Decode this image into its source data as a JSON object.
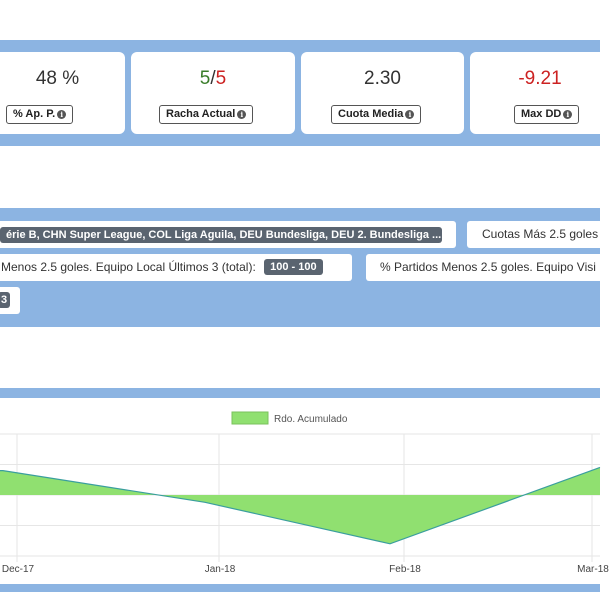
{
  "stats": [
    {
      "value": "48 %",
      "label": "% Ap. P."
    },
    {
      "value_a": "5",
      "sep": "/",
      "value_b": "5",
      "label": "Racha Actual"
    },
    {
      "value": "2.30",
      "label": "Cuota Media"
    },
    {
      "value": "-9.21",
      "label": "Max DD"
    }
  ],
  "colors": {
    "band": "#8cb4e2",
    "positive": "#3a7d2a",
    "negative": "#cc2222",
    "fill": "#90e070",
    "line": "#3a9e9e"
  },
  "filters": {
    "leagues_tag": "érie B, CHN Super League, COL Liga Aguila, DEU Bundesliga, DEU 2. Bundesliga ...",
    "cuotas_label": "Cuotas Más 2.5 goles",
    "local_label": "Menos 2.5 goles. Equipo Local Últimos 3 (total):",
    "local_tag": "100 - 100",
    "visit_label": "% Partidos Menos 2.5 goles. Equipo Visi",
    "small_tag": "3"
  },
  "chart_data": {
    "type": "area",
    "legend": [
      "Rdo. Acumulado"
    ],
    "legend_position": "top",
    "x": [
      "Dec-17",
      "Jan-18",
      "Feb-18",
      "Mar-18"
    ],
    "series": [
      {
        "name": "Rdo. Acumulado",
        "values": [
          1.0,
          -0.3,
          -2.0,
          0.8
        ]
      }
    ],
    "grid": true
  }
}
